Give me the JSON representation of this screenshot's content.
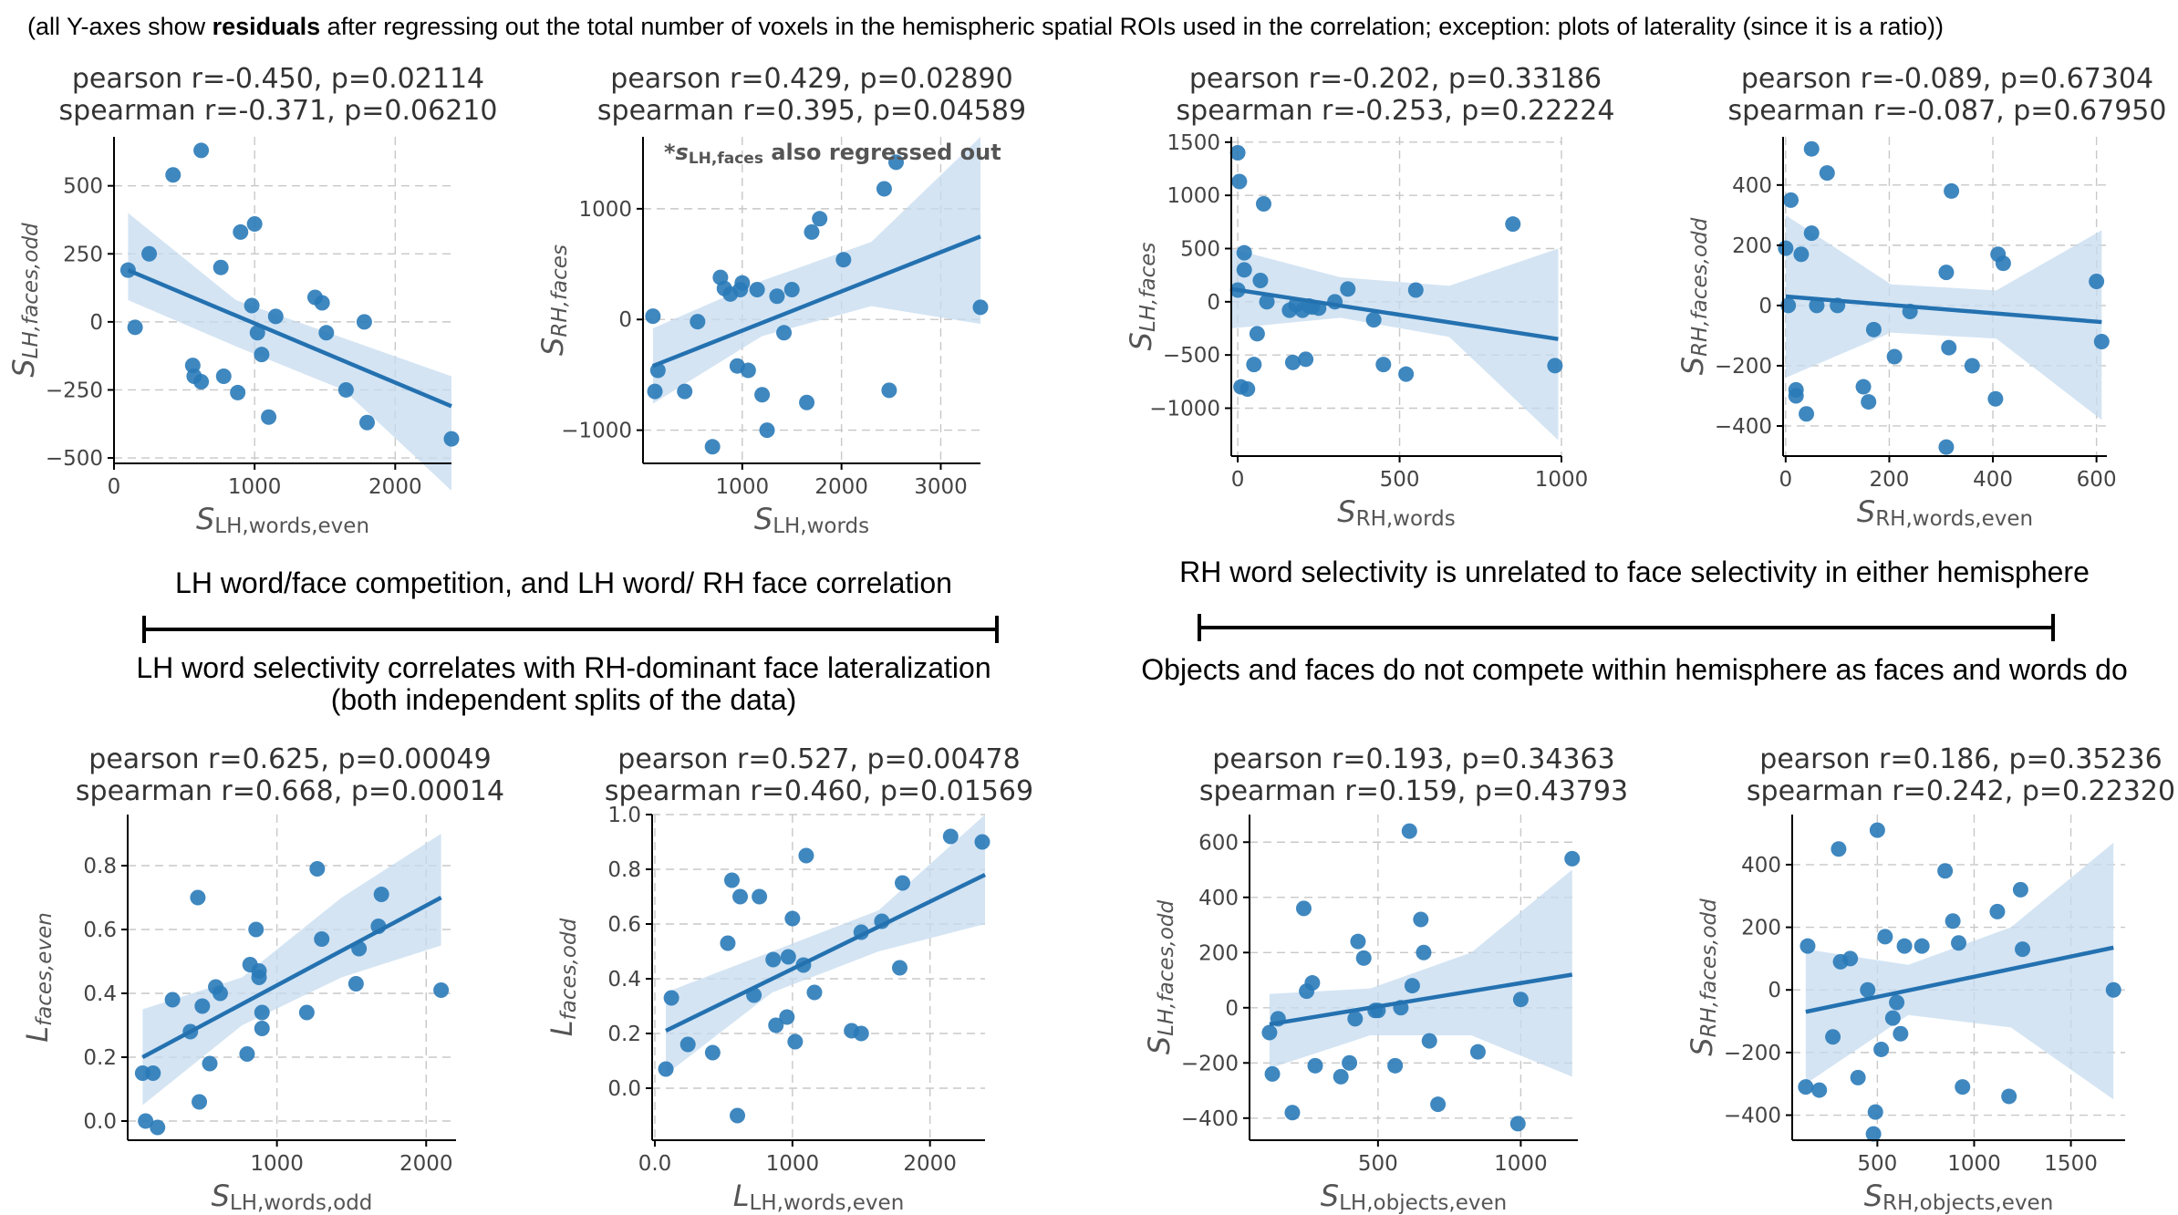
{
  "top_note": {
    "pre": "(all Y-axes show ",
    "bold": "residuals",
    "post": " after regressing out the total number of voxels in the hemispheric spatial ROIs used in the correlation; exception: plots of laterality (since it is a ratio))"
  },
  "section_titles": {
    "left_top": "LH word/face competition, and LH word/ RH face correlation",
    "left_bottom_1": "LH word selectivity correlates with RH-dominant face lateralization",
    "left_bottom_2": "(both independent splits of the data)",
    "right_top": "RH word selectivity is unrelated to face selectivity in either hemisphere",
    "right_bottom": "Objects and faces do not compete within hemisphere as faces and words do"
  },
  "colors": {
    "points": "#2a7ab8",
    "line": "#2471b0",
    "band": "#c6dbef",
    "grid": "#c8c8c8"
  },
  "chart_data": [
    {
      "type": "scatter",
      "stats": [
        "pearson r=-0.450, p=0.02114",
        "spearman r=-0.371, p=0.06210"
      ],
      "xlabel_main": "S",
      "xlabel_sub": "LH,words,even",
      "ylabel_main": "S",
      "ylabel_sub": "LH,faces,odd",
      "xlim": [
        0,
        2400
      ],
      "ylim": [
        -520,
        680
      ],
      "xticks": [
        0,
        1000,
        2000
      ],
      "yticks": [
        -500,
        -250,
        0,
        250,
        500
      ],
      "fit": [
        [
          100,
          190
        ],
        [
          2400,
          -310
        ]
      ],
      "band_low": [
        80,
        -90,
        -250,
        -620
      ],
      "band_high": [
        400,
        80,
        -60,
        -200
      ],
      "x": [
        100,
        150,
        250,
        420,
        560,
        570,
        620,
        620,
        760,
        780,
        900,
        880,
        980,
        1000,
        1020,
        1050,
        1100,
        1150,
        1430,
        1480,
        1510,
        1650,
        1780,
        1800,
        2400
      ],
      "y": [
        190,
        -20,
        250,
        540,
        -160,
        -200,
        630,
        -220,
        200,
        -200,
        330,
        -260,
        60,
        360,
        -40,
        -120,
        -350,
        20,
        90,
        70,
        -40,
        -250,
        0,
        -370,
        -430
      ]
    },
    {
      "type": "scatter",
      "stats": [
        "pearson r=0.429, p=0.02890",
        "spearman r=0.395, p=0.04589"
      ],
      "note": "also regressed out",
      "xlabel_main": "S",
      "xlabel_sub": "LH,words",
      "ylabel_main": "S",
      "ylabel_sub": "RH,faces",
      "xlim": [
        0,
        3400
      ],
      "ylim": [
        -1300,
        1650
      ],
      "xticks": [
        1000,
        2000,
        3000
      ],
      "yticks": [
        -1000,
        0,
        1000
      ],
      "fit": [
        [
          100,
          -420
        ],
        [
          3400,
          750
        ]
      ],
      "band_low": [
        -760,
        -150,
        120,
        -40
      ],
      "band_high": [
        -80,
        350,
        700,
        1650
      ],
      "x": [
        100,
        120,
        150,
        420,
        550,
        700,
        780,
        820,
        880,
        950,
        980,
        1000,
        1060,
        1150,
        1200,
        1250,
        1350,
        1420,
        1500,
        1650,
        1700,
        1780,
        2020,
        2430,
        2480,
        2550,
        3400
      ],
      "y": [
        30,
        -650,
        -460,
        -650,
        -20,
        -1150,
        380,
        280,
        230,
        -420,
        270,
        330,
        -460,
        270,
        -680,
        -1000,
        210,
        -120,
        270,
        -750,
        790,
        910,
        540,
        1180,
        -640,
        1420,
        110
      ]
    },
    {
      "type": "scatter",
      "stats": [
        "pearson r=-0.202, p=0.33186",
        "spearman r=-0.253, p=0.22224"
      ],
      "xlabel_main": "S",
      "xlabel_sub": "RH,words",
      "ylabel_main": "S",
      "ylabel_sub": "LH,faces",
      "xlim": [
        -20,
        1000
      ],
      "ylim": [
        -1450,
        1550
      ],
      "xticks": [
        0,
        500,
        1000
      ],
      "yticks": [
        -1000,
        -500,
        0,
        500,
        1000,
        1500
      ],
      "fit": [
        [
          -20,
          120
        ],
        [
          990,
          -350
        ]
      ],
      "band_low": [
        -250,
        -150,
        -330,
        -1300
      ],
      "band_high": [
        500,
        230,
        150,
        500
      ],
      "x": [
        0,
        5,
        10,
        0,
        20,
        20,
        30,
        50,
        60,
        70,
        80,
        90,
        160,
        170,
        180,
        200,
        210,
        220,
        230,
        250,
        300,
        340,
        420,
        450,
        520,
        550,
        850,
        980
      ],
      "y": [
        1400,
        1130,
        -800,
        110,
        460,
        300,
        -820,
        -590,
        -300,
        200,
        920,
        0,
        -80,
        -570,
        -30,
        -80,
        -540,
        -40,
        -50,
        -60,
        0,
        120,
        -170,
        -590,
        -680,
        110,
        730,
        -600
      ]
    },
    {
      "type": "scatter",
      "stats": [
        "pearson r=-0.089, p=0.67304",
        "spearman r=-0.087, p=0.67950"
      ],
      "xlabel_main": "S",
      "xlabel_sub": "RH,words,even",
      "ylabel_main": "S",
      "ylabel_sub": "RH,faces,odd",
      "xlim": [
        -5,
        620
      ],
      "ylim": [
        -500,
        560
      ],
      "xticks": [
        0,
        200,
        400,
        600
      ],
      "yticks": [
        -400,
        -200,
        0,
        200,
        400
      ],
      "fit": [
        [
          0,
          30
        ],
        [
          610,
          -55
        ]
      ],
      "band_low": [
        -240,
        -90,
        -110,
        -380
      ],
      "band_high": [
        300,
        70,
        50,
        250
      ],
      "x": [
        0,
        5,
        10,
        20,
        20,
        30,
        40,
        50,
        50,
        60,
        80,
        100,
        150,
        160,
        170,
        210,
        240,
        310,
        310,
        315,
        320,
        360,
        405,
        410,
        420,
        600,
        610
      ],
      "y": [
        190,
        0,
        350,
        -280,
        -300,
        170,
        -360,
        520,
        240,
        0,
        440,
        0,
        -270,
        -320,
        -80,
        -170,
        -20,
        -470,
        110,
        -140,
        380,
        -200,
        -310,
        170,
        140,
        80,
        -120
      ]
    },
    {
      "type": "scatter",
      "stats": [
        "pearson r=0.625, p=0.00049",
        "spearman r=0.668, p=0.00014"
      ],
      "xlabel_main": "S",
      "xlabel_sub": "LH,words,odd",
      "ylabel_main": "L",
      "ylabel_sub": "faces,even",
      "xlim": [
        0,
        2200
      ],
      "ylim": [
        -0.06,
        0.96
      ],
      "xticks": [
        1000,
        2000
      ],
      "yticks": [
        0.0,
        0.2,
        0.4,
        0.6,
        0.8
      ],
      "fit": [
        [
          100,
          0.2
        ],
        [
          2100,
          0.7
        ]
      ],
      "band_low": [
        0.05,
        0.3,
        0.45,
        0.55
      ],
      "band_high": [
        0.35,
        0.45,
        0.7,
        0.9
      ],
      "x": [
        100,
        120,
        170,
        200,
        300,
        420,
        470,
        480,
        500,
        550,
        590,
        620,
        800,
        820,
        860,
        880,
        880,
        900,
        900,
        1200,
        1270,
        1300,
        1530,
        1550,
        1680,
        1700,
        2100
      ],
      "y": [
        0.15,
        0.0,
        0.15,
        -0.02,
        0.38,
        0.28,
        0.7,
        0.06,
        0.36,
        0.18,
        0.42,
        0.4,
        0.21,
        0.49,
        0.6,
        0.47,
        0.45,
        0.34,
        0.29,
        0.34,
        0.79,
        0.57,
        0.43,
        0.54,
        0.61,
        0.71,
        0.41
      ]
    },
    {
      "type": "scatter",
      "stats": [
        "pearson r=0.527, p=0.00478",
        "spearman r=0.460, p=0.01569"
      ],
      "xlabel_main": "L",
      "xlabel_sub": "LH,words,even",
      "ylabel_main": "L",
      "ylabel_sub": "faces,odd",
      "xlim": [
        -20,
        2400
      ],
      "ylim": [
        -0.19,
        1.0
      ],
      "xticks": [
        0,
        1000,
        2000
      ],
      "yticks": [
        0.0,
        0.2,
        0.4,
        0.6,
        0.8,
        1.0
      ],
      "fit": [
        [
          80,
          0.21
        ],
        [
          2400,
          0.78
        ]
      ],
      "band_low": [
        0.05,
        0.35,
        0.5,
        0.6
      ],
      "band_high": [
        0.35,
        0.5,
        0.65,
        1.0
      ],
      "x": [
        80,
        120,
        240,
        420,
        530,
        560,
        600,
        620,
        720,
        760,
        860,
        880,
        960,
        970,
        1000,
        1020,
        1080,
        1100,
        1160,
        1430,
        1500,
        1500,
        1650,
        1780,
        1800,
        2150,
        2380
      ],
      "y": [
        0.07,
        0.33,
        0.16,
        0.13,
        0.53,
        0.76,
        -0.1,
        0.7,
        0.34,
        0.7,
        0.47,
        0.23,
        0.26,
        0.48,
        0.62,
        0.17,
        0.45,
        0.85,
        0.35,
        0.21,
        0.2,
        0.57,
        0.61,
        0.44,
        0.75,
        0.92,
        0.9
      ]
    },
    {
      "type": "scatter",
      "stats": [
        "pearson r=0.193, p=0.34363",
        "spearman r=0.159, p=0.43793"
      ],
      "xlabel_main": "S",
      "xlabel_sub": "LH,objects,even",
      "ylabel_main": "S",
      "ylabel_sub": "LH,faces,odd",
      "xlim": [
        50,
        1200
      ],
      "ylim": [
        -480,
        700
      ],
      "xticks": [
        500,
        1000
      ],
      "yticks": [
        -400,
        -200,
        0,
        200,
        400,
        600
      ],
      "fit": [
        [
          120,
          -60
        ],
        [
          1180,
          120
        ]
      ],
      "band_low": [
        -220,
        -100,
        -100,
        -250
      ],
      "band_high": [
        50,
        70,
        200,
        500
      ],
      "x": [
        120,
        130,
        150,
        200,
        240,
        250,
        270,
        280,
        370,
        400,
        420,
        430,
        450,
        490,
        500,
        560,
        580,
        610,
        620,
        650,
        660,
        680,
        710,
        850,
        990,
        1000,
        1180
      ],
      "y": [
        -90,
        -240,
        -40,
        -380,
        360,
        60,
        90,
        -210,
        -250,
        -200,
        -40,
        240,
        180,
        -10,
        -10,
        -210,
        0,
        640,
        80,
        320,
        200,
        -120,
        -350,
        -160,
        -420,
        30,
        540
      ]
    },
    {
      "type": "scatter",
      "stats": [
        "pearson r=0.186, p=0.35236",
        "spearman r=0.242, p=0.22320"
      ],
      "xlabel_main": "S",
      "xlabel_sub": "RH,objects,even",
      "ylabel_main": "S",
      "ylabel_sub": "RH,faces,odd",
      "xlim": [
        60,
        1780
      ],
      "ylim": [
        -480,
        560
      ],
      "xticks": [
        500,
        1000,
        1500
      ],
      "yticks": [
        -400,
        -200,
        0,
        200,
        400
      ],
      "fit": [
        [
          130,
          -70
        ],
        [
          1720,
          135
        ]
      ],
      "band_low": [
        -300,
        -80,
        -120,
        -350
      ],
      "band_high": [
        130,
        80,
        200,
        470
      ],
      "x": [
        130,
        140,
        200,
        270,
        300,
        310,
        360,
        400,
        450,
        480,
        490,
        500,
        520,
        540,
        580,
        600,
        620,
        640,
        730,
        850,
        890,
        920,
        940,
        1120,
        1180,
        1240,
        1250,
        1720
      ],
      "y": [
        -310,
        140,
        -320,
        -150,
        450,
        90,
        100,
        -280,
        0,
        -460,
        -390,
        510,
        -190,
        170,
        -90,
        -40,
        -140,
        140,
        140,
        380,
        220,
        150,
        -310,
        250,
        -340,
        320,
        130,
        0
      ]
    }
  ]
}
